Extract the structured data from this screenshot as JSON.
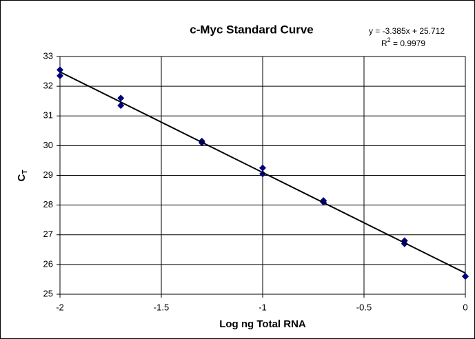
{
  "chart_data": {
    "type": "scatter",
    "title": "c-Myc Standard Curve",
    "equation": "y = -3.385x + 25.712",
    "r2": {
      "symbol": "R",
      "power": "2",
      "rest": " = 0.9979"
    },
    "x_label": "Log ng Total RNA",
    "y_label": {
      "main": "C",
      "sub": "T"
    },
    "xlim": [
      -2,
      0
    ],
    "ylim": [
      25,
      33
    ],
    "xticks": [
      -2,
      -1.5,
      -1,
      -0.5,
      0
    ],
    "yticks": [
      25,
      26,
      27,
      28,
      29,
      30,
      31,
      32,
      33
    ],
    "grid": true,
    "series": [
      {
        "color": "#000080",
        "x": [
          -2,
          -2,
          -1.7,
          -1.7,
          -1.3,
          -1.3,
          -1,
          -1,
          -0.7,
          -0.7,
          -0.3,
          -0.3,
          0,
          0
        ],
        "values": [
          32.55,
          32.35,
          31.6,
          31.35,
          30.15,
          30.1,
          29.25,
          29.05,
          28.15,
          28.1,
          26.8,
          26.7,
          25.6,
          25.6
        ]
      }
    ],
    "trendline": {
      "color": "#000000",
      "x": [
        -2,
        0
      ],
      "values": [
        32.482,
        25.712
      ]
    }
  }
}
